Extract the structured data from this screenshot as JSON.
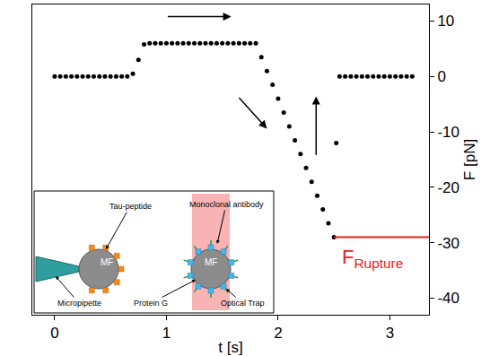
{
  "chart_data": {
    "type": "scatter",
    "x_label": "t [s]",
    "y_label": "F [pN]",
    "x": [
      0,
      0.05,
      0.1,
      0.15,
      0.2,
      0.25,
      0.3,
      0.35,
      0.4,
      0.45,
      0.5,
      0.55,
      0.6,
      0.65,
      0.7,
      0.75,
      0.8,
      0.85,
      0.9,
      0.95,
      1,
      1.05,
      1.1,
      1.15,
      1.2,
      1.25,
      1.3,
      1.35,
      1.4,
      1.45,
      1.5,
      1.55,
      1.6,
      1.65,
      1.7,
      1.75,
      1.8,
      1.85,
      1.9,
      1.95,
      2,
      2.05,
      2.1,
      2.15,
      2.2,
      2.25,
      2.3,
      2.35,
      2.4,
      2.45,
      2.5,
      2.52,
      2.55,
      2.6,
      2.65,
      2.7,
      2.75,
      2.8,
      2.85,
      2.9,
      2.95,
      3,
      3.05,
      3.1,
      3.15,
      3.2
    ],
    "values": [
      0,
      0,
      0,
      0,
      0,
      0,
      0,
      0,
      0,
      0,
      0,
      0,
      0,
      0,
      0.5,
      3,
      5.8,
      6,
      6,
      6,
      6,
      6,
      6,
      6,
      6,
      6,
      6,
      6,
      6,
      6,
      6,
      6,
      6,
      6,
      6,
      6,
      6,
      3.5,
      1,
      -1.5,
      -4,
      -6.5,
      -9,
      -11.5,
      -14,
      -16.5,
      -19,
      -21.5,
      -24,
      -26.5,
      -29,
      -12,
      0,
      0,
      0,
      0,
      0,
      0,
      0,
      0,
      0,
      0,
      0,
      0,
      0,
      0
    ],
    "color": "#000000",
    "marker": "circle",
    "xlim": [
      -0.2,
      3.35
    ],
    "ylim": [
      -43,
      13
    ],
    "xticks": [
      0,
      1,
      2,
      3
    ],
    "yticks": [
      -40,
      -30,
      -20,
      -10,
      0,
      10
    ],
    "grid": false,
    "rupture": {
      "value": -29,
      "x": [
        2.5,
        3.35
      ],
      "label": "F",
      "subscript": "Rupture",
      "color": "#e8201a"
    },
    "inset": {
      "micropipette": "Micropipette",
      "tau_peptide": "Tau-peptide",
      "antibody": "Monoclonal antibody",
      "protein_g": "Protein G",
      "optical_trap": "Optical Trap",
      "bead_labels": [
        "MF",
        "MF"
      ]
    }
  }
}
